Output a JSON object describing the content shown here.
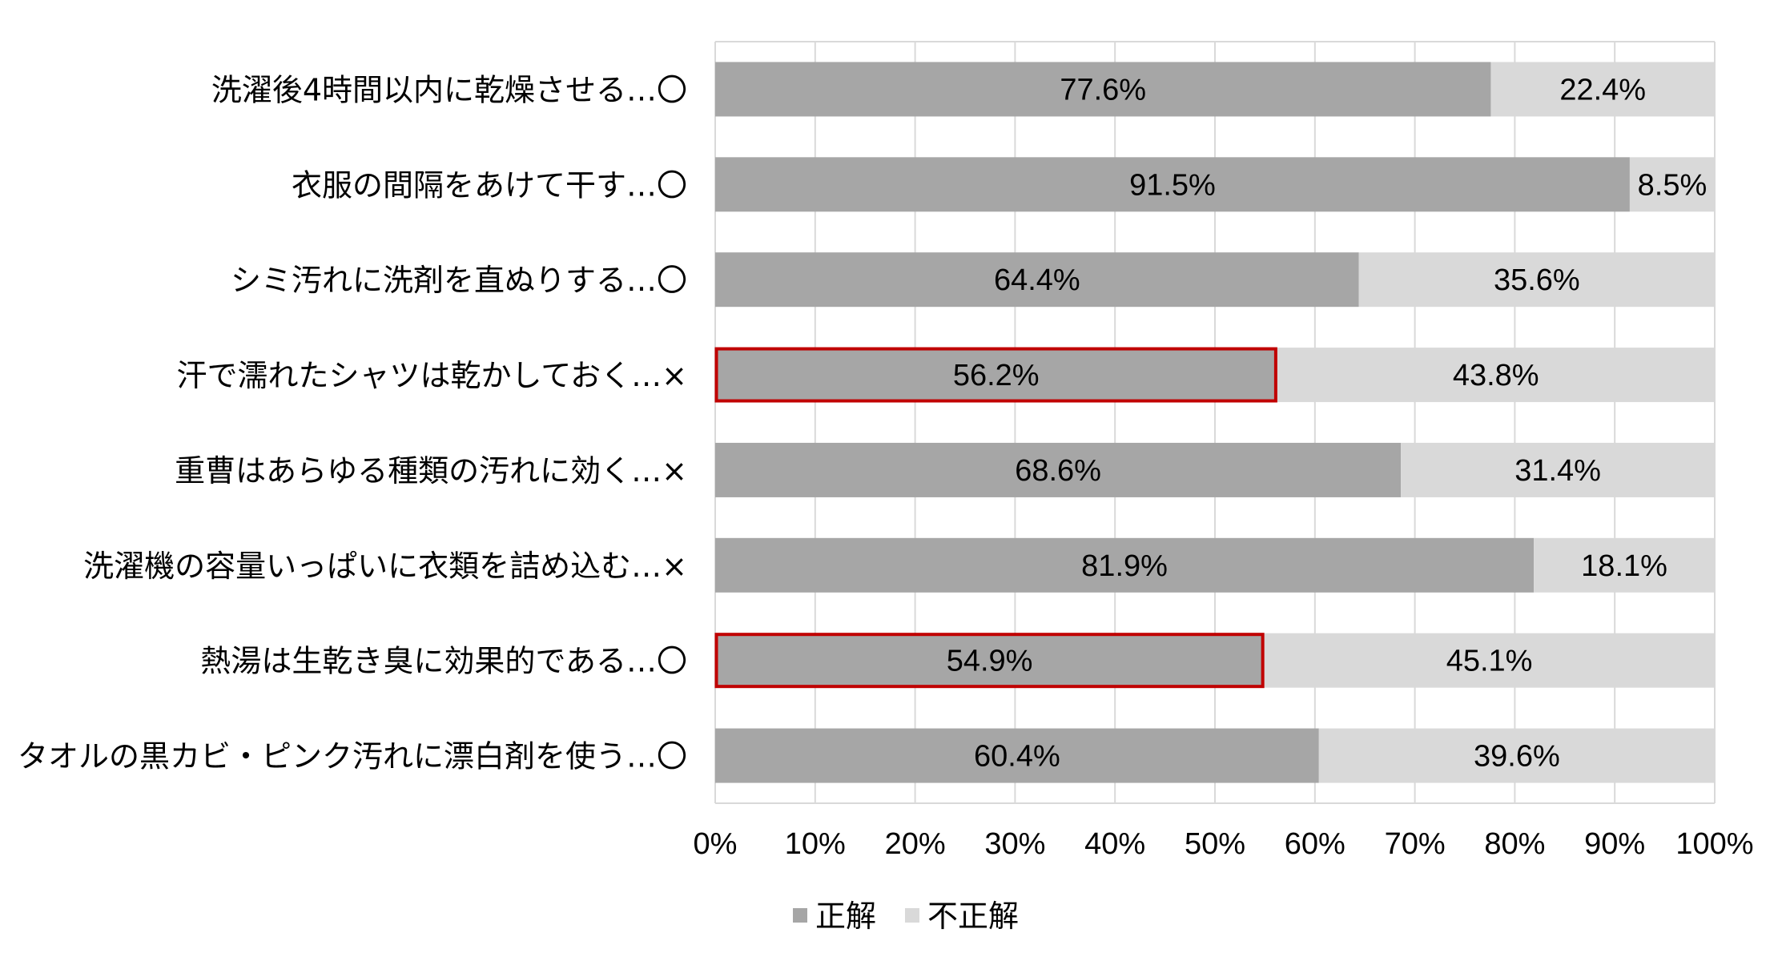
{
  "chart_data": {
    "type": "bar",
    "orientation": "horizontal",
    "stacked": true,
    "categories": [
      "洗濯後4時間以内に乾燥させる…〇",
      "衣服の間隔をあけて干す…〇",
      "シミ汚れに洗剤を直ぬりする…〇",
      "汗で濡れたシャツは乾かしておく…×",
      "重曹はあらゆる種類の汚れに効く…×",
      "洗濯機の容量いっぱいに衣類を詰め込む…×",
      "熱湯は生乾き臭に効果的である…〇",
      "タオルの黒カビ・ピンク汚れに漂白剤を使う…〇"
    ],
    "series": [
      {
        "name": "正解",
        "values": [
          77.6,
          91.5,
          64.4,
          56.2,
          68.6,
          81.9,
          54.9,
          60.4
        ],
        "labels": [
          "77.6%",
          "91.5%",
          "64.4%",
          "56.2%",
          "68.6%",
          "81.9%",
          "54.9%",
          "60.4%"
        ],
        "color": "#a6a6a6"
      },
      {
        "name": "不正解",
        "values": [
          22.4,
          8.5,
          35.6,
          43.8,
          31.4,
          18.1,
          45.1,
          39.6
        ],
        "labels": [
          "22.4%",
          "8.5%",
          "35.6%",
          "43.8%",
          "31.4%",
          "18.1%",
          "45.1%",
          "39.6%"
        ],
        "color": "#d9d9d9"
      }
    ],
    "highlighted_categories": [
      3,
      6
    ],
    "highlight_color": "#c00000",
    "xlim": [
      0,
      100
    ],
    "x_ticks": [
      "0%",
      "10%",
      "20%",
      "30%",
      "40%",
      "50%",
      "60%",
      "70%",
      "80%",
      "90%",
      "100%"
    ],
    "grid": true,
    "gridline_color": "#d9d9d9",
    "legend_position": "bottom",
    "title": "",
    "xlabel": "",
    "ylabel": ""
  }
}
